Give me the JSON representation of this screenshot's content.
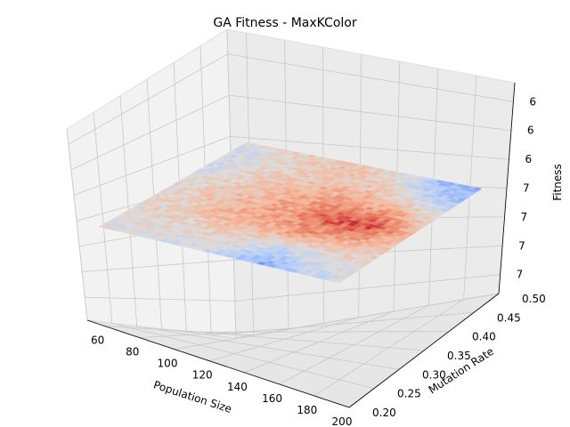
{
  "chart_data": {
    "type": "surface3d",
    "title": "GA Fitness - MaxKColor",
    "xlabel": "Population Size",
    "ylabel": "Mutation Rate",
    "zlabel": "Fitness",
    "xlim": [
      50,
      200
    ],
    "ylim": [
      0.2,
      0.5
    ],
    "zlim": [
      5.99,
      7.01
    ],
    "xticks": [
      "60",
      "80",
      "100",
      "120",
      "140",
      "160",
      "180",
      "200"
    ],
    "yticks": [
      "0.20",
      "0.25",
      "0.30",
      "0.35",
      "0.40",
      "0.45",
      "0.50"
    ],
    "zticks": [
      "6",
      "6",
      "6",
      "7",
      "7",
      "7",
      "7"
    ],
    "colormap": "coolwarm",
    "colormap_stops": [
      "#3b4cc0",
      "#7396f5",
      "#b0cbfc",
      "#dddcdc",
      "#f5b89b",
      "#e7745b",
      "#b40426"
    ],
    "grid": true,
    "surface_description": "near-flat surface around fitness 6.5 with low (blue) pockets at high mutation rate / high population and at low mutation rate / mid population, and a high (red) region at high population, mid mutation rate",
    "grid_x": [
      50,
      75,
      100,
      125,
      150,
      175,
      200
    ],
    "grid_y": [
      0.2,
      0.25,
      0.3,
      0.35,
      0.4,
      0.45,
      0.5
    ],
    "z": [
      [
        0.5,
        0.48,
        0.46,
        0.4,
        0.22,
        0.38,
        0.48
      ],
      [
        0.5,
        0.52,
        0.56,
        0.52,
        0.42,
        0.5,
        0.52
      ],
      [
        0.52,
        0.58,
        0.66,
        0.7,
        0.76,
        0.66,
        0.58
      ],
      [
        0.5,
        0.6,
        0.66,
        0.74,
        0.86,
        0.9,
        0.64
      ],
      [
        0.46,
        0.56,
        0.62,
        0.7,
        0.72,
        0.7,
        0.56
      ],
      [
        0.42,
        0.52,
        0.58,
        0.62,
        0.58,
        0.42,
        0.34
      ],
      [
        0.48,
        0.52,
        0.6,
        0.62,
        0.5,
        0.3,
        0.22
      ]
    ]
  }
}
